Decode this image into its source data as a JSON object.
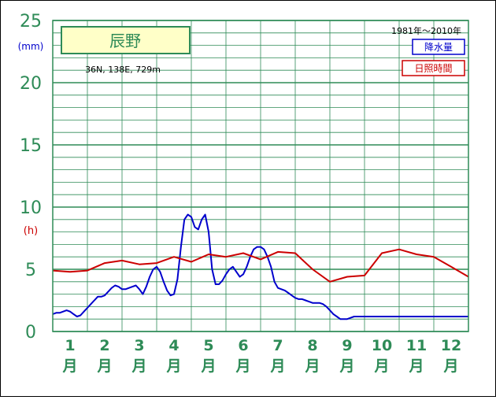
{
  "chart_data": {
    "type": "line",
    "title": "辰野",
    "subtitle": "36N, 138E, 729m",
    "period": "1981年〜2010年",
    "ylabel_left": "(mm)",
    "ylabel_left2": "(h)",
    "ylim": [
      0,
      25
    ],
    "y_ticks": [
      "0",
      "5",
      "10",
      "15",
      "20",
      "25"
    ],
    "categories": [
      "1",
      "2",
      "3",
      "4",
      "5",
      "6",
      "7",
      "8",
      "9",
      "10",
      "11",
      "12"
    ],
    "month_suffix": "月",
    "legend_placement": "top-right",
    "grid": true,
    "series": [
      {
        "name": "降水量",
        "color": "#0000cc",
        "x": [
          0.0,
          0.1,
          0.2,
          0.3,
          0.4,
          0.5,
          0.6,
          0.7,
          0.8,
          0.9,
          1.0,
          1.1,
          1.2,
          1.3,
          1.4,
          1.5,
          1.6,
          1.7,
          1.8,
          1.9,
          2.0,
          2.1,
          2.2,
          2.3,
          2.4,
          2.5,
          2.6,
          2.7,
          2.8,
          2.9,
          3.0,
          3.1,
          3.2,
          3.3,
          3.4,
          3.5,
          3.6,
          3.7,
          3.8,
          3.9,
          4.0,
          4.1,
          4.2,
          4.3,
          4.4,
          4.5,
          4.6,
          4.7,
          4.8,
          4.9,
          5.0,
          5.1,
          5.2,
          5.3,
          5.4,
          5.5,
          5.6,
          5.7,
          5.8,
          5.9,
          6.0,
          6.1,
          6.2,
          6.3,
          6.4,
          6.5,
          6.6,
          6.7,
          6.8,
          6.9,
          7.0,
          7.1,
          7.2,
          7.3,
          7.4,
          7.5,
          7.6,
          7.7,
          7.8,
          7.9,
          8.0,
          8.1,
          8.2,
          8.3,
          8.4,
          8.5,
          8.6,
          8.7,
          8.8,
          8.9,
          9.0,
          9.1,
          9.2,
          9.3,
          9.4,
          9.5,
          9.6,
          9.7,
          9.8,
          9.9,
          10.0,
          10.1,
          10.2,
          10.3,
          10.4,
          10.5,
          10.6,
          10.7,
          10.8,
          10.9,
          11.0,
          11.1,
          11.2,
          11.3,
          11.4,
          11.5,
          11.6,
          11.7,
          11.8,
          11.9,
          12.0
        ],
        "values": [
          1.4,
          1.5,
          1.5,
          1.6,
          1.7,
          1.6,
          1.4,
          1.2,
          1.3,
          1.6,
          1.9,
          2.2,
          2.5,
          2.8,
          2.8,
          2.9,
          3.2,
          3.5,
          3.7,
          3.6,
          3.4,
          3.4,
          3.5,
          3.6,
          3.7,
          3.4,
          3.0,
          3.6,
          4.4,
          5.0,
          5.2,
          4.8,
          4.0,
          3.3,
          2.9,
          3.0,
          4.2,
          6.8,
          9.0,
          9.4,
          9.2,
          8.4,
          8.2,
          9.0,
          9.4,
          8.0,
          5.0,
          3.8,
          3.8,
          4.1,
          4.6,
          5.0,
          5.2,
          4.8,
          4.4,
          4.6,
          5.2,
          6.0,
          6.6,
          6.8,
          6.8,
          6.6,
          6.0,
          5.2,
          4.0,
          3.5,
          3.4,
          3.3,
          3.1,
          2.9,
          2.7,
          2.6,
          2.6,
          2.5,
          2.4,
          2.3,
          2.3,
          2.3,
          2.2,
          2.0,
          1.7,
          1.4,
          1.2,
          1.0,
          1.0,
          1.0,
          1.1,
          1.2,
          1.2,
          1.2,
          1.2,
          1.2,
          1.2,
          1.2,
          1.2,
          1.2,
          1.2,
          1.2,
          1.2,
          1.2,
          1.2,
          1.2,
          1.2,
          1.2,
          1.2,
          1.2,
          1.2,
          1.2,
          1.2,
          1.2,
          1.2,
          1.2,
          1.2,
          1.2,
          1.2,
          1.2,
          1.2,
          1.2,
          1.2,
          1.2,
          1.2
        ]
      },
      {
        "name": "日照時間",
        "color": "#cc0000",
        "x": [
          0.0,
          0.5,
          1.0,
          1.5,
          2.0,
          2.5,
          3.0,
          3.5,
          4.0,
          4.5,
          5.0,
          5.5,
          6.0,
          6.5,
          7.0,
          7.5,
          8.0,
          8.5,
          9.0,
          9.5,
          10.0,
          10.5,
          11.0,
          11.5,
          12.0
        ],
        "values": [
          4.9,
          4.8,
          4.9,
          5.5,
          5.7,
          5.4,
          5.5,
          6.0,
          5.6,
          6.2,
          6.0,
          6.3,
          5.8,
          6.4,
          6.3,
          5.0,
          4.0,
          4.4,
          4.5,
          6.3,
          6.6,
          6.2,
          6.0,
          5.2,
          4.4
        ]
      }
    ]
  }
}
